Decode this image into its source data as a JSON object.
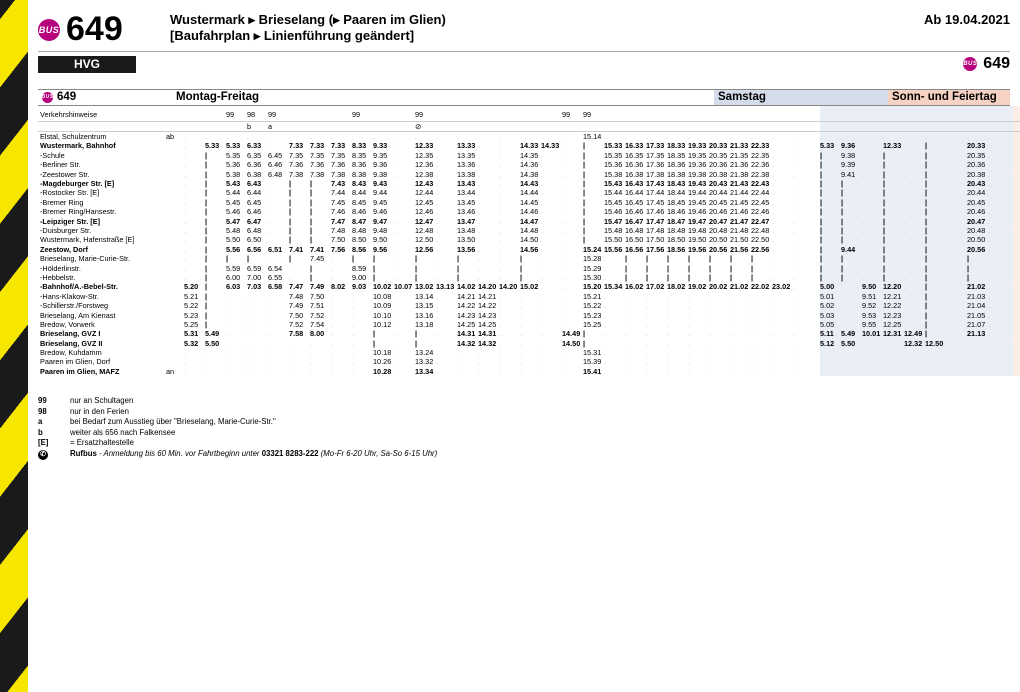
{
  "header": {
    "bus_label": "BUS",
    "route": "649",
    "title_line1": "Wustermark ▸ Brieselang (▸ Paaren im Glien)",
    "title_line2": "[Baufahrplan ▸ Linienführung geändert]",
    "valid_from": "Ab 19.04.2021",
    "operator": "HVG"
  },
  "section_titles": {
    "line": "649",
    "mf": "Montag-Freitag",
    "sa": "Samstag",
    "su": "Sonn- und Feiertag"
  },
  "hints_label": "Verkehrshinweise",
  "hints": [
    "",
    "",
    "99",
    "98",
    "99",
    "",
    "",
    "",
    "99",
    "",
    "",
    "99",
    "",
    "",
    "",
    "",
    "",
    "",
    "99",
    "99",
    "",
    "",
    "",
    "",
    "",
    "",
    "",
    "",
    "",
    "",
    "",
    "",
    "",
    "",
    "",
    "",
    "",
    "",
    "",
    ""
  ],
  "hints2": [
    "",
    "",
    "",
    "b",
    "a",
    "",
    "",
    "",
    "",
    "",
    "",
    "⊘",
    "",
    "",
    "",
    "",
    "",
    "",
    "",
    "",
    "",
    "",
    "",
    "",
    "",
    "",
    "",
    "",
    "",
    "",
    "",
    "",
    "",
    "",
    "",
    "",
    "",
    "",
    "",
    ""
  ],
  "stops": [
    {
      "n": "Elstal, Schulzentrum",
      "ab": "ab",
      "b": 0
    },
    {
      "n": "Wustermark, Bahnhof",
      "ab": "",
      "b": 1
    },
    {
      "n": "-Schule",
      "ab": "",
      "b": 0
    },
    {
      "n": "-Berliner Str.",
      "ab": "",
      "b": 0
    },
    {
      "n": "-Zeestower Str.",
      "ab": "",
      "b": 0
    },
    {
      "n": "-Magdeburger Str. [E]",
      "ab": "",
      "b": 1
    },
    {
      "n": "-Rostocker Str. [E]",
      "ab": "",
      "b": 0
    },
    {
      "n": "-Bremer Ring",
      "ab": "",
      "b": 0
    },
    {
      "n": "-Bremer Ring/Hansestr.",
      "ab": "",
      "b": 0
    },
    {
      "n": "-Leipziger Str. [E]",
      "ab": "",
      "b": 1
    },
    {
      "n": "-Duisburger Str.",
      "ab": "",
      "b": 0
    },
    {
      "n": "Wustermark, Hafenstraße [E]",
      "ab": "",
      "b": 0
    },
    {
      "n": "Zeestow, Dorf",
      "ab": "",
      "b": 1
    },
    {
      "n": "Brieselang, Marie-Curie-Str.",
      "ab": "",
      "b": 0
    },
    {
      "n": "-Hölderlinstr.",
      "ab": "",
      "b": 0
    },
    {
      "n": "-Hebbelstr.",
      "ab": "",
      "b": 0
    },
    {
      "n": "-Bahnhof/A.-Bebel-Str.",
      "ab": "",
      "b": 1
    },
    {
      "n": "-Hans-Klakow-Str.",
      "ab": "",
      "b": 0
    },
    {
      "n": "-Schillerstr./Forstweg",
      "ab": "",
      "b": 0
    },
    {
      "n": "Brieselang, Am Kienast",
      "ab": "",
      "b": 0
    },
    {
      "n": "Bredow, Vorwerk",
      "ab": "",
      "b": 0
    },
    {
      "n": "Brieselang, GVZ I",
      "ab": "",
      "b": 1
    },
    {
      "n": "Brieselang, GVZ II",
      "ab": "",
      "b": 1
    },
    {
      "n": "Bredow, Kuhdamm",
      "ab": "",
      "b": 0
    },
    {
      "n": "Paaren im Glien, Dorf",
      "ab": "",
      "b": 0
    },
    {
      "n": "Paaren im Glien, MAFZ",
      "ab": "an",
      "b": 1
    }
  ],
  "mf_cols": 30,
  "times_mf": [
    [
      ".",
      ".",
      ".",
      ".",
      ".",
      ".",
      ".",
      ".",
      ".",
      ".",
      ".",
      ".",
      ".",
      ".",
      ".",
      ".",
      ".",
      ".",
      ".",
      "15.14",
      ".",
      ".",
      ".",
      ".",
      ".",
      ".",
      ".",
      ".",
      ".",
      "."
    ],
    [
      ".",
      "5.33",
      "5.33",
      "6.33",
      ".",
      "7.33",
      "7.33",
      "7.33",
      "8.33",
      "9.33",
      ".",
      "12.33",
      ".",
      "13.33",
      ".",
      ".",
      "14.33",
      "14.33",
      ".",
      "|",
      "15.33",
      "16.33",
      "17.33",
      "18.33",
      "19.33",
      "20.33",
      "21.33",
      "22.33",
      ".",
      "."
    ],
    [
      ".",
      "|",
      "5.35",
      "6.35",
      "6.45",
      "7.35",
      "7.35",
      "7.35",
      "8.35",
      "9.35",
      ".",
      "12.35",
      ".",
      "13.35",
      ".",
      ".",
      "14.35",
      ".",
      ".",
      "|",
      "15.35",
      "16.35",
      "17.35",
      "18.35",
      "19.35",
      "20.35",
      "21.35",
      "22.35",
      ".",
      "."
    ],
    [
      ".",
      "|",
      "5.36",
      "6.36",
      "6.46",
      "7.36",
      "7.36",
      "7.36",
      "8.36",
      "9.36",
      ".",
      "12.36",
      ".",
      "13.36",
      ".",
      ".",
      "14.36",
      ".",
      ".",
      "|",
      "15.36",
      "16.36",
      "17.36",
      "18.36",
      "19.36",
      "20.36",
      "21.36",
      "22.36",
      ".",
      "."
    ],
    [
      ".",
      "|",
      "5.38",
      "6.38",
      "6.48",
      "7.38",
      "7.38",
      "7.38",
      "8.38",
      "9.38",
      ".",
      "12.38",
      ".",
      "13.38",
      ".",
      ".",
      "14.38",
      ".",
      ".",
      "|",
      "15.38",
      "16.38",
      "17.38",
      "18.38",
      "19.38",
      "20.38",
      "21.38",
      "22.38",
      ".",
      "."
    ],
    [
      ".",
      "|",
      "5.43",
      "6.43",
      ".",
      "|",
      "|",
      "7.43",
      "8.43",
      "9.43",
      ".",
      "12.43",
      ".",
      "13.43",
      ".",
      ".",
      "14.43",
      ".",
      ".",
      "|",
      "15.43",
      "16.43",
      "17.43",
      "18.43",
      "19.43",
      "20.43",
      "21.43",
      "22.43",
      ".",
      "."
    ],
    [
      ".",
      "|",
      "5.44",
      "6.44",
      ".",
      "|",
      "|",
      "7.44",
      "8.44",
      "9.44",
      ".",
      "12.44",
      ".",
      "13.44",
      ".",
      ".",
      "14.44",
      ".",
      ".",
      "|",
      "15.44",
      "16.44",
      "17.44",
      "18.44",
      "19.44",
      "20.44",
      "21.44",
      "22.44",
      ".",
      "."
    ],
    [
      ".",
      "|",
      "5.45",
      "6.45",
      ".",
      "|",
      "|",
      "7.45",
      "8.45",
      "9.45",
      ".",
      "12.45",
      ".",
      "13.45",
      ".",
      ".",
      "14.45",
      ".",
      ".",
      "|",
      "15.45",
      "16.45",
      "17.45",
      "18.45",
      "19.45",
      "20.45",
      "21.45",
      "22.45",
      ".",
      "."
    ],
    [
      ".",
      "|",
      "5.46",
      "6.46",
      ".",
      "|",
      "|",
      "7.46",
      "8.46",
      "9.46",
      ".",
      "12.46",
      ".",
      "13.46",
      ".",
      ".",
      "14.46",
      ".",
      ".",
      "|",
      "15.46",
      "16.46",
      "17.46",
      "18.46",
      "19.46",
      "20.46",
      "21.46",
      "22.46",
      ".",
      "."
    ],
    [
      ".",
      "|",
      "5.47",
      "6.47",
      ".",
      "|",
      "|",
      "7.47",
      "8.47",
      "9.47",
      ".",
      "12.47",
      ".",
      "13.47",
      ".",
      ".",
      "14.47",
      ".",
      ".",
      "|",
      "15.47",
      "16.47",
      "17.47",
      "18.47",
      "19.47",
      "20.47",
      "21.47",
      "22.47",
      ".",
      "."
    ],
    [
      ".",
      "|",
      "5.48",
      "6.48",
      ".",
      "|",
      "|",
      "7.48",
      "8.48",
      "9.48",
      ".",
      "12.48",
      ".",
      "13.48",
      ".",
      ".",
      "14.48",
      ".",
      ".",
      "|",
      "15.48",
      "16.48",
      "17.48",
      "18.48",
      "19.48",
      "20.48",
      "21.48",
      "22.48",
      ".",
      "."
    ],
    [
      ".",
      "|",
      "5.50",
      "6.50",
      ".",
      "|",
      "|",
      "7.50",
      "8.50",
      "9.50",
      ".",
      "12.50",
      ".",
      "13.50",
      ".",
      ".",
      "14.50",
      ".",
      ".",
      "|",
      "15.50",
      "16.50",
      "17.50",
      "18.50",
      "19.50",
      "20.50",
      "21.50",
      "22.50",
      ".",
      "."
    ],
    [
      ".",
      "|",
      "5.56",
      "6.56",
      "6.51",
      "7.41",
      "7.41",
      "7.56",
      "8.56",
      "9.56",
      ".",
      "12.56",
      ".",
      "13.56",
      ".",
      ".",
      "14.56",
      ".",
      ".",
      "15.24",
      "15.56",
      "16.56",
      "17.56",
      "18.56",
      "19.56",
      "20.56",
      "21.56",
      "22.56",
      ".",
      "."
    ],
    [
      ".",
      "|",
      "|",
      "|",
      ".",
      "|",
      "7.45",
      ".",
      "|",
      "|",
      ".",
      "|",
      ".",
      "|",
      ".",
      ".",
      "|",
      ".",
      ".",
      "15.28",
      ".",
      "|",
      "|",
      "|",
      "|",
      "|",
      "|",
      "|",
      ".",
      "."
    ],
    [
      ".",
      "|",
      "5.59",
      "6.59",
      "6.54",
      ".",
      "|",
      ".",
      "8.59",
      "|",
      ".",
      "|",
      ".",
      "|",
      ".",
      ".",
      "|",
      ".",
      ".",
      "15.29",
      ".",
      "|",
      "|",
      "|",
      "|",
      "|",
      "|",
      "|",
      ".",
      "."
    ],
    [
      ".",
      "|",
      "6.00",
      "7.00",
      "6.55",
      ".",
      "|",
      ".",
      "9.00",
      "|",
      ".",
      "|",
      ".",
      "|",
      ".",
      ".",
      "|",
      ".",
      ".",
      "15.30",
      ".",
      "|",
      "|",
      "|",
      "|",
      "|",
      "|",
      "|",
      ".",
      "."
    ],
    [
      "5.20",
      "|",
      "6.03",
      "7.03",
      "6.58",
      "7.47",
      "7.49",
      "8.02",
      "9.03",
      "10.02",
      "10.07",
      "13.02",
      "13.13",
      "14.02",
      "14.20",
      "14.20",
      "15.02",
      ".",
      ".",
      "15.20",
      "15.34",
      "16.02",
      "17.02",
      "18.02",
      "19.02",
      "20.02",
      "21.02",
      "22.02",
      "23.02",
      "."
    ],
    [
      "5.21",
      "|",
      ".",
      ".",
      ".",
      "7.48",
      "7.50",
      ".",
      ".",
      "10.08",
      ".",
      "13.14",
      ".",
      "14.21",
      "14.21",
      ".",
      ".",
      ".",
      ".",
      "15.21",
      ".",
      ".",
      ".",
      ".",
      ".",
      ".",
      ".",
      ".",
      ".",
      "."
    ],
    [
      "5.22",
      "|",
      ".",
      ".",
      ".",
      "7.49",
      "7.51",
      ".",
      ".",
      "10.09",
      ".",
      "13.15",
      ".",
      "14.22",
      "14.22",
      ".",
      ".",
      ".",
      ".",
      "15.22",
      ".",
      ".",
      ".",
      ".",
      ".",
      ".",
      ".",
      ".",
      ".",
      "."
    ],
    [
      "5.23",
      "|",
      ".",
      ".",
      ".",
      "7.50",
      "7.52",
      ".",
      ".",
      "10.10",
      ".",
      "13.16",
      ".",
      "14.23",
      "14.23",
      ".",
      ".",
      ".",
      ".",
      "15.23",
      ".",
      ".",
      ".",
      ".",
      ".",
      ".",
      ".",
      ".",
      ".",
      "."
    ],
    [
      "5.25",
      "|",
      ".",
      ".",
      ".",
      "7.52",
      "7.54",
      ".",
      ".",
      "10.12",
      ".",
      "13.18",
      ".",
      "14.25",
      "14.25",
      ".",
      ".",
      ".",
      ".",
      "15.25",
      ".",
      ".",
      ".",
      ".",
      ".",
      ".",
      ".",
      ".",
      ".",
      "."
    ],
    [
      "5.31",
      "5.49",
      ".",
      ".",
      ".",
      "7.58",
      "8.00",
      ".",
      ".",
      "|",
      ".",
      "|",
      ".",
      "14.31",
      "14.31",
      ".",
      ".",
      ".",
      "14.49",
      "|",
      ".",
      ".",
      ".",
      ".",
      ".",
      ".",
      ".",
      ".",
      ".",
      "."
    ],
    [
      "5.32",
      "5.50",
      ".",
      ".",
      ".",
      ".",
      ".",
      ".",
      ".",
      "|",
      ".",
      "|",
      ".",
      "14.32",
      "14.32",
      ".",
      ".",
      ".",
      "14.50",
      "|",
      ".",
      ".",
      ".",
      ".",
      ".",
      ".",
      ".",
      ".",
      ".",
      "."
    ],
    [
      ".",
      ".",
      ".",
      ".",
      ".",
      ".",
      ".",
      ".",
      ".",
      "10.18",
      ".",
      "13.24",
      ".",
      ".",
      ".",
      ".",
      ".",
      ".",
      ".",
      "15.31",
      ".",
      ".",
      ".",
      ".",
      ".",
      ".",
      ".",
      ".",
      ".",
      "."
    ],
    [
      ".",
      ".",
      ".",
      ".",
      ".",
      ".",
      ".",
      ".",
      ".",
      "10.26",
      ".",
      "13.32",
      ".",
      ".",
      ".",
      ".",
      ".",
      ".",
      ".",
      "15.39",
      ".",
      ".",
      ".",
      ".",
      ".",
      ".",
      ".",
      ".",
      ".",
      "."
    ],
    [
      ".",
      ".",
      ".",
      ".",
      ".",
      ".",
      ".",
      ".",
      ".",
      "10.28",
      ".",
      "13.34",
      ".",
      ".",
      ".",
      ".",
      ".",
      ".",
      ".",
      "15.41",
      ".",
      ".",
      ".",
      ".",
      ".",
      ".",
      ".",
      ".",
      ".",
      "."
    ]
  ],
  "times_sa": [
    [
      ".",
      ".",
      ".",
      ".",
      ".",
      ".",
      ".",
      ".",
      "."
    ],
    [
      "5.33",
      "9.36",
      ".",
      "12.33",
      ".",
      "|",
      ".",
      "20.33",
      "."
    ],
    [
      "|",
      "9.38",
      ".",
      "|",
      ".",
      "|",
      ".",
      "20.35",
      "."
    ],
    [
      "|",
      "9.39",
      ".",
      "|",
      ".",
      "|",
      ".",
      "20.36",
      "."
    ],
    [
      "|",
      "9.41",
      ".",
      "|",
      ".",
      "|",
      ".",
      "20.38",
      "."
    ],
    [
      "|",
      "|",
      ".",
      "|",
      ".",
      "|",
      ".",
      "20.43",
      "."
    ],
    [
      "|",
      "|",
      ".",
      "|",
      ".",
      "|",
      ".",
      "20.44",
      "."
    ],
    [
      "|",
      "|",
      ".",
      "|",
      ".",
      "|",
      ".",
      "20.45",
      "."
    ],
    [
      "|",
      "|",
      ".",
      "|",
      ".",
      "|",
      ".",
      "20.46",
      "."
    ],
    [
      "|",
      "|",
      ".",
      "|",
      ".",
      "|",
      ".",
      "20.47",
      "."
    ],
    [
      "|",
      "|",
      ".",
      "|",
      ".",
      "|",
      ".",
      "20.48",
      "."
    ],
    [
      "|",
      "|",
      ".",
      "|",
      ".",
      "|",
      ".",
      "20.50",
      "."
    ],
    [
      "|",
      "9.44",
      ".",
      "|",
      ".",
      "|",
      ".",
      "20.56",
      "."
    ],
    [
      "|",
      "|",
      ".",
      "|",
      ".",
      "|",
      ".",
      "|",
      "."
    ],
    [
      "|",
      "|",
      ".",
      "|",
      ".",
      "|",
      ".",
      "|",
      "."
    ],
    [
      "|",
      "|",
      ".",
      "|",
      ".",
      "|",
      ".",
      "|",
      "."
    ],
    [
      "5.00",
      ".",
      "9.50",
      "12.20",
      ".",
      "|",
      ".",
      "21.02",
      "."
    ],
    [
      "5.01",
      ".",
      "9.51",
      "12.21",
      ".",
      "|",
      ".",
      "21.03",
      "."
    ],
    [
      "5.02",
      ".",
      "9.52",
      "12.22",
      ".",
      "|",
      ".",
      "21.04",
      "."
    ],
    [
      "5.03",
      ".",
      "9.53",
      "12.23",
      ".",
      "|",
      ".",
      "21.05",
      "."
    ],
    [
      "5.05",
      ".",
      "9.55",
      "12.25",
      ".",
      "|",
      ".",
      "21.07",
      "."
    ],
    [
      "5.11",
      "5.49",
      "10.01",
      "12.31",
      "12.49",
      "|",
      ".",
      "21.13",
      "."
    ],
    [
      "5.12",
      "5.50",
      ".",
      ".",
      "12.32",
      "12.50",
      ".",
      ".",
      "."
    ],
    [
      ".",
      ".",
      ".",
      ".",
      ".",
      ".",
      ".",
      ".",
      "."
    ],
    [
      ".",
      ".",
      ".",
      ".",
      ".",
      ".",
      ".",
      ".",
      "."
    ],
    [
      ".",
      ".",
      ".",
      ".",
      ".",
      ".",
      ".",
      ".",
      "."
    ]
  ],
  "notes": [
    {
      "k": "99",
      "v": "nur an Schultagen"
    },
    {
      "k": "98",
      "v": "nur in den Ferien"
    },
    {
      "k": "a",
      "v": "bei Bedarf zum Ausstieg über \"Brieselang, Marie-Curie-Str.\""
    },
    {
      "k": "b",
      "v": "weiter als 656 nach Falkensee"
    },
    {
      "k": "[E]",
      "v": "= Ersatzhaltestelle"
    }
  ],
  "rufbus": {
    "icon": "⊘",
    "label": "Rufbus",
    "text": " - Anmeldung bis 60 Min. vor Fahrtbeginn unter ",
    "phone": "03321 8283-222",
    "hours": " (Mo-Fr 6-20 Uhr, Sa-So 6-15 Uhr)"
  },
  "style": {
    "accent": "#b6007d",
    "sa_bg": "#eaeef7",
    "su_bg": "#fceee7",
    "sa_head": "#d4dcea",
    "su_head": "#f6d2c4"
  }
}
